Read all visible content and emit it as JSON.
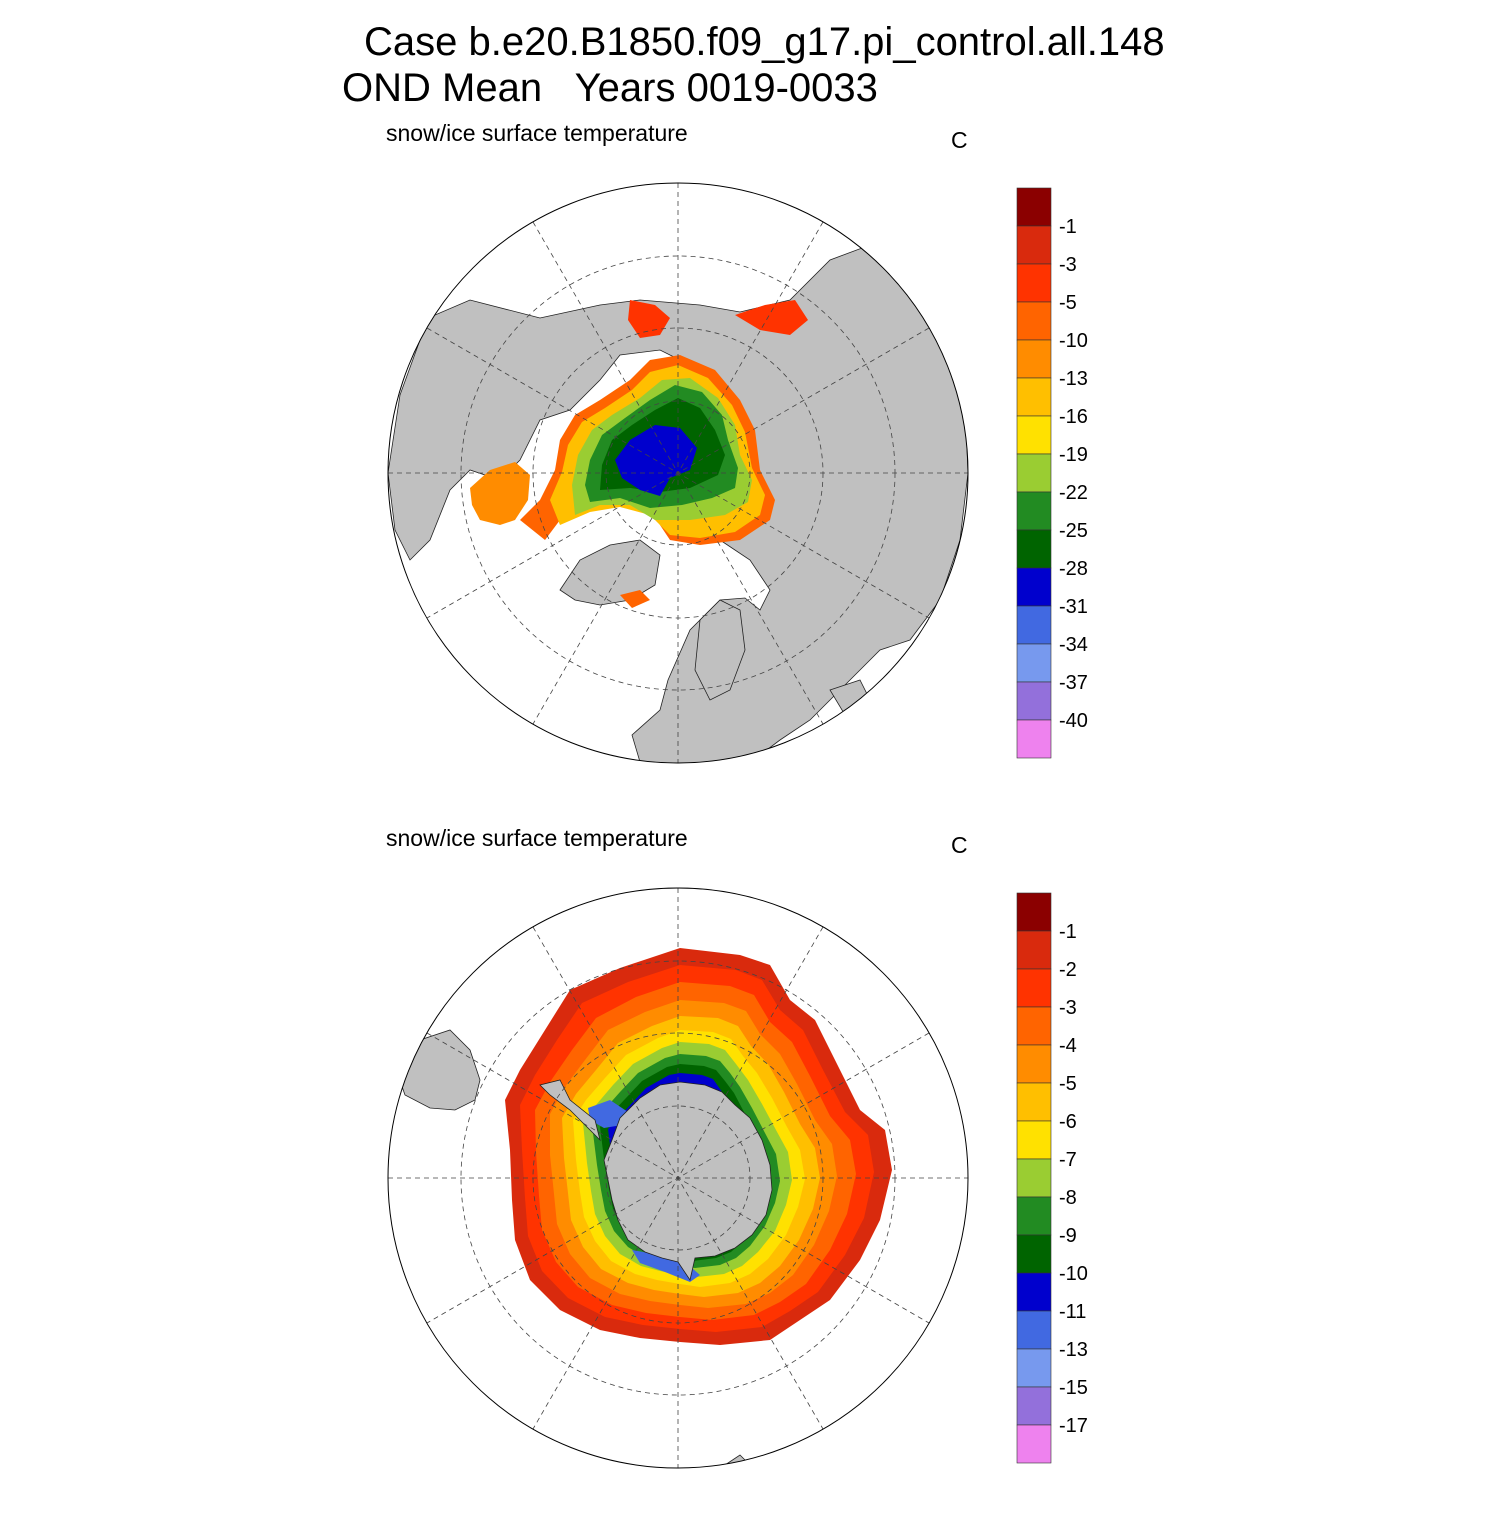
{
  "title": {
    "line1": "Case b.e20.B1850.f09_g17.pi_control.all.148",
    "line2": "OND Mean   Years 0019-0033"
  },
  "panels": [
    {
      "id": "north",
      "hemisphere": "Northern Hemisphere",
      "label": "snow/ice surface temperature",
      "units": "C",
      "colorbar": {
        "colors": [
          "#8b0000",
          "#d92a0d",
          "#ff3300",
          "#ff6400",
          "#ff8c00",
          "#ffbf00",
          "#ffe100",
          "#9acd32",
          "#228b22",
          "#006400",
          "#0000cd",
          "#4169e1",
          "#7799ee",
          "#9370db",
          "#ee82ee"
        ],
        "labels": [
          "-1",
          "-3",
          "-5",
          "-10",
          "-13",
          "-16",
          "-19",
          "-22",
          "-25",
          "-28",
          "-31",
          "-34",
          "-37",
          "-40"
        ]
      }
    },
    {
      "id": "south",
      "hemisphere": "Southern Hemisphere",
      "label": "snow/ice surface temperature",
      "units": "C",
      "colorbar": {
        "colors": [
          "#8b0000",
          "#d92a0d",
          "#ff3300",
          "#ff6400",
          "#ff8c00",
          "#ffbf00",
          "#ffe100",
          "#9acd32",
          "#228b22",
          "#006400",
          "#0000cd",
          "#4169e1",
          "#7799ee",
          "#9370db",
          "#ee82ee"
        ],
        "labels": [
          "-1",
          "-2",
          "-3",
          "-4",
          "-5",
          "-6",
          "-7",
          "-8",
          "-9",
          "-10",
          "-11",
          "-13",
          "-15",
          "-17"
        ]
      }
    }
  ],
  "map_style": {
    "land_color": "#c0c0c0",
    "ocean_color": "#ffffff",
    "grid": "dashed"
  }
}
